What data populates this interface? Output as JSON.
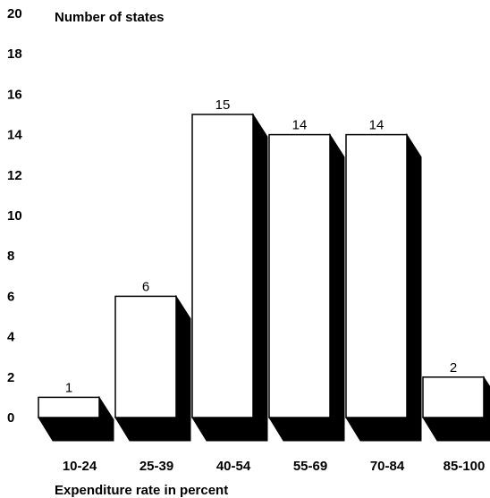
{
  "chart_data": {
    "type": "bar",
    "title": "",
    "ylabel": "Number of states",
    "xlabel": "Expenditure rate in percent",
    "categories": [
      "10-24",
      "25-39",
      "40-54",
      "55-69",
      "70-84",
      "85-100"
    ],
    "values": [
      1,
      6,
      15,
      14,
      14,
      2
    ],
    "data_labels": [
      "1",
      "6",
      "15",
      "14",
      "14",
      "2"
    ],
    "y_ticks": [
      "0",
      "2",
      "4",
      "6",
      "8",
      "10",
      "12",
      "14",
      "16",
      "18",
      "20"
    ],
    "ylim": [
      0,
      20
    ],
    "grid": false,
    "legend": "none",
    "style": "3d-shadow-bars",
    "colors": {
      "bar_fill": "#ffffff",
      "bar_stroke": "#000000",
      "shadow": "#000000"
    }
  }
}
